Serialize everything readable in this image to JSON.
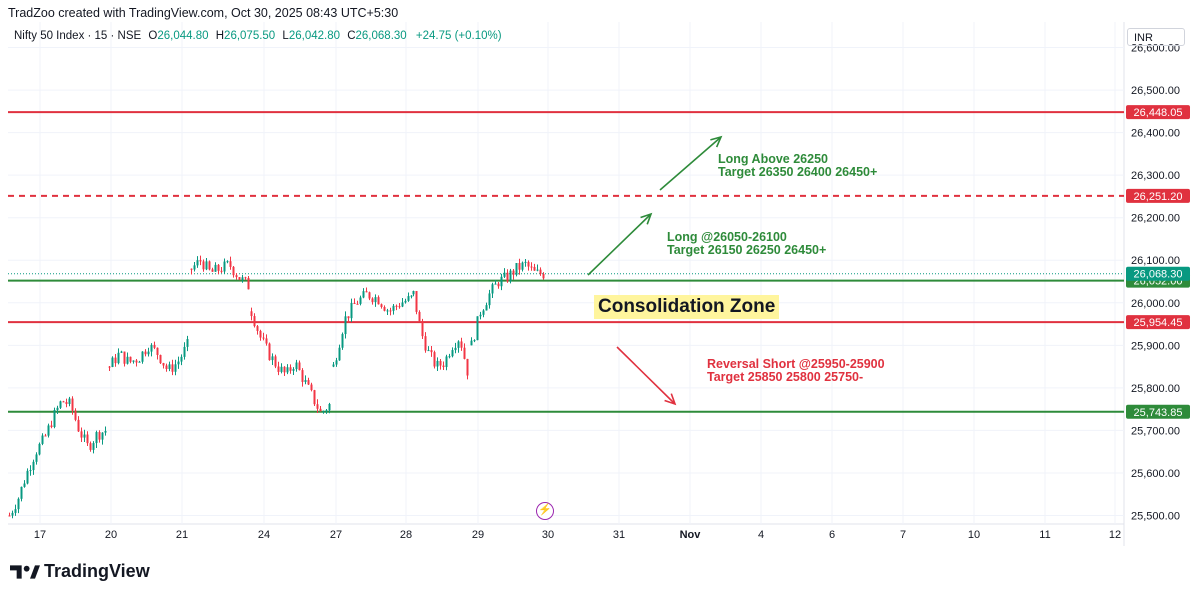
{
  "header": {
    "attribution": "TradZoo created with TradingView.com, Oct 30, 2025 08:43 UTC+5:30"
  },
  "legend": {
    "symbol": "Nifty 50 Index · 15 · NSE",
    "o_label": "O",
    "o": "26,044.80",
    "h_label": "H",
    "h": "26,075.50",
    "l_label": "L",
    "l": "26,042.80",
    "c_label": "C",
    "c": "26,068.30",
    "change": "+24.75 (+0.10%)"
  },
  "currency": "INR",
  "zone_label": "Consolidation Zone",
  "annotations": {
    "long_above": {
      "line1": "Long Above 26250",
      "line2": "Target 26350 26400 26450+"
    },
    "long_range": {
      "line1": "Long @26050-26100",
      "line2": "Target 26150 26250 26450+"
    },
    "reversal": {
      "line1": "Reversal Short @25950-25900",
      "line2": "Target 25850 25800 25750-"
    }
  },
  "footer": {
    "brand": "TradingView"
  },
  "colors": {
    "up": "#089981",
    "down": "#f23645",
    "red_line": "#e0313f",
    "green_line": "#2e8b3a",
    "accent_text_green": "#2e8b3a"
  },
  "chart_data": {
    "type": "candlestick",
    "title": "Nifty 50 Index · 15 · NSE",
    "ylim": [
      25480,
      26660
    ],
    "y_ticks": [
      25500,
      25600,
      25700,
      25800,
      25900,
      26000,
      26100,
      26200,
      26300,
      26400,
      26500,
      26600
    ],
    "y_tick_labels": [
      "25,500.00",
      "25,600.00",
      "25,700.00",
      "25,800.00",
      "25,900.00",
      "26,000.00",
      "26,100.00",
      "26,200.00",
      "26,300.00",
      "26,400.00",
      "26,500.00",
      "26,600.00"
    ],
    "x_tick_labels": [
      "17",
      "20",
      "21",
      "24",
      "27",
      "28",
      "29",
      "30",
      "31",
      "Nov",
      "4",
      "6",
      "7",
      "10",
      "11",
      "12"
    ],
    "horizontal_levels": [
      {
        "price": 26448.05,
        "label": "26,448.05",
        "color": "#e0313f",
        "style": "solid"
      },
      {
        "price": 26251.2,
        "label": "26,251.20",
        "color": "#e0313f",
        "style": "dashed"
      },
      {
        "price": 26052.0,
        "label": "26,052.00",
        "color": "#2e8b3a",
        "style": "solid"
      },
      {
        "price": 25954.45,
        "label": "25,954.45",
        "color": "#e0313f",
        "style": "solid"
      },
      {
        "price": 25743.85,
        "label": "25,743.85",
        "color": "#2e8b3a",
        "style": "solid"
      }
    ],
    "last_price": {
      "price": 26068.3,
      "label": "26,068.30"
    },
    "session_close_path": [
      [
        25500,
        25540,
        25600,
        25650,
        25680,
        25730,
        25770,
        25760,
        25700,
        25660,
        25690,
        25700
      ],
      [
        25850,
        25880,
        25860,
        25870,
        25900,
        25880,
        25840,
        25860,
        25900
      ],
      [
        26080,
        26100,
        26070,
        26080,
        26090,
        26060,
        26040
      ],
      [
        25980,
        25920,
        25880,
        25850,
        25830,
        25860,
        25820,
        25780,
        25740,
        25760
      ],
      [
        25850,
        25960,
        26000,
        26020,
        26010,
        25980,
        26000,
        26010
      ],
      [
        26020,
        25930,
        25880,
        25850,
        25860,
        25900,
        25920,
        25840
      ],
      [
        25900,
        25980,
        26020,
        26050,
        26060,
        26080,
        26090,
        26070,
        26068
      ]
    ]
  }
}
